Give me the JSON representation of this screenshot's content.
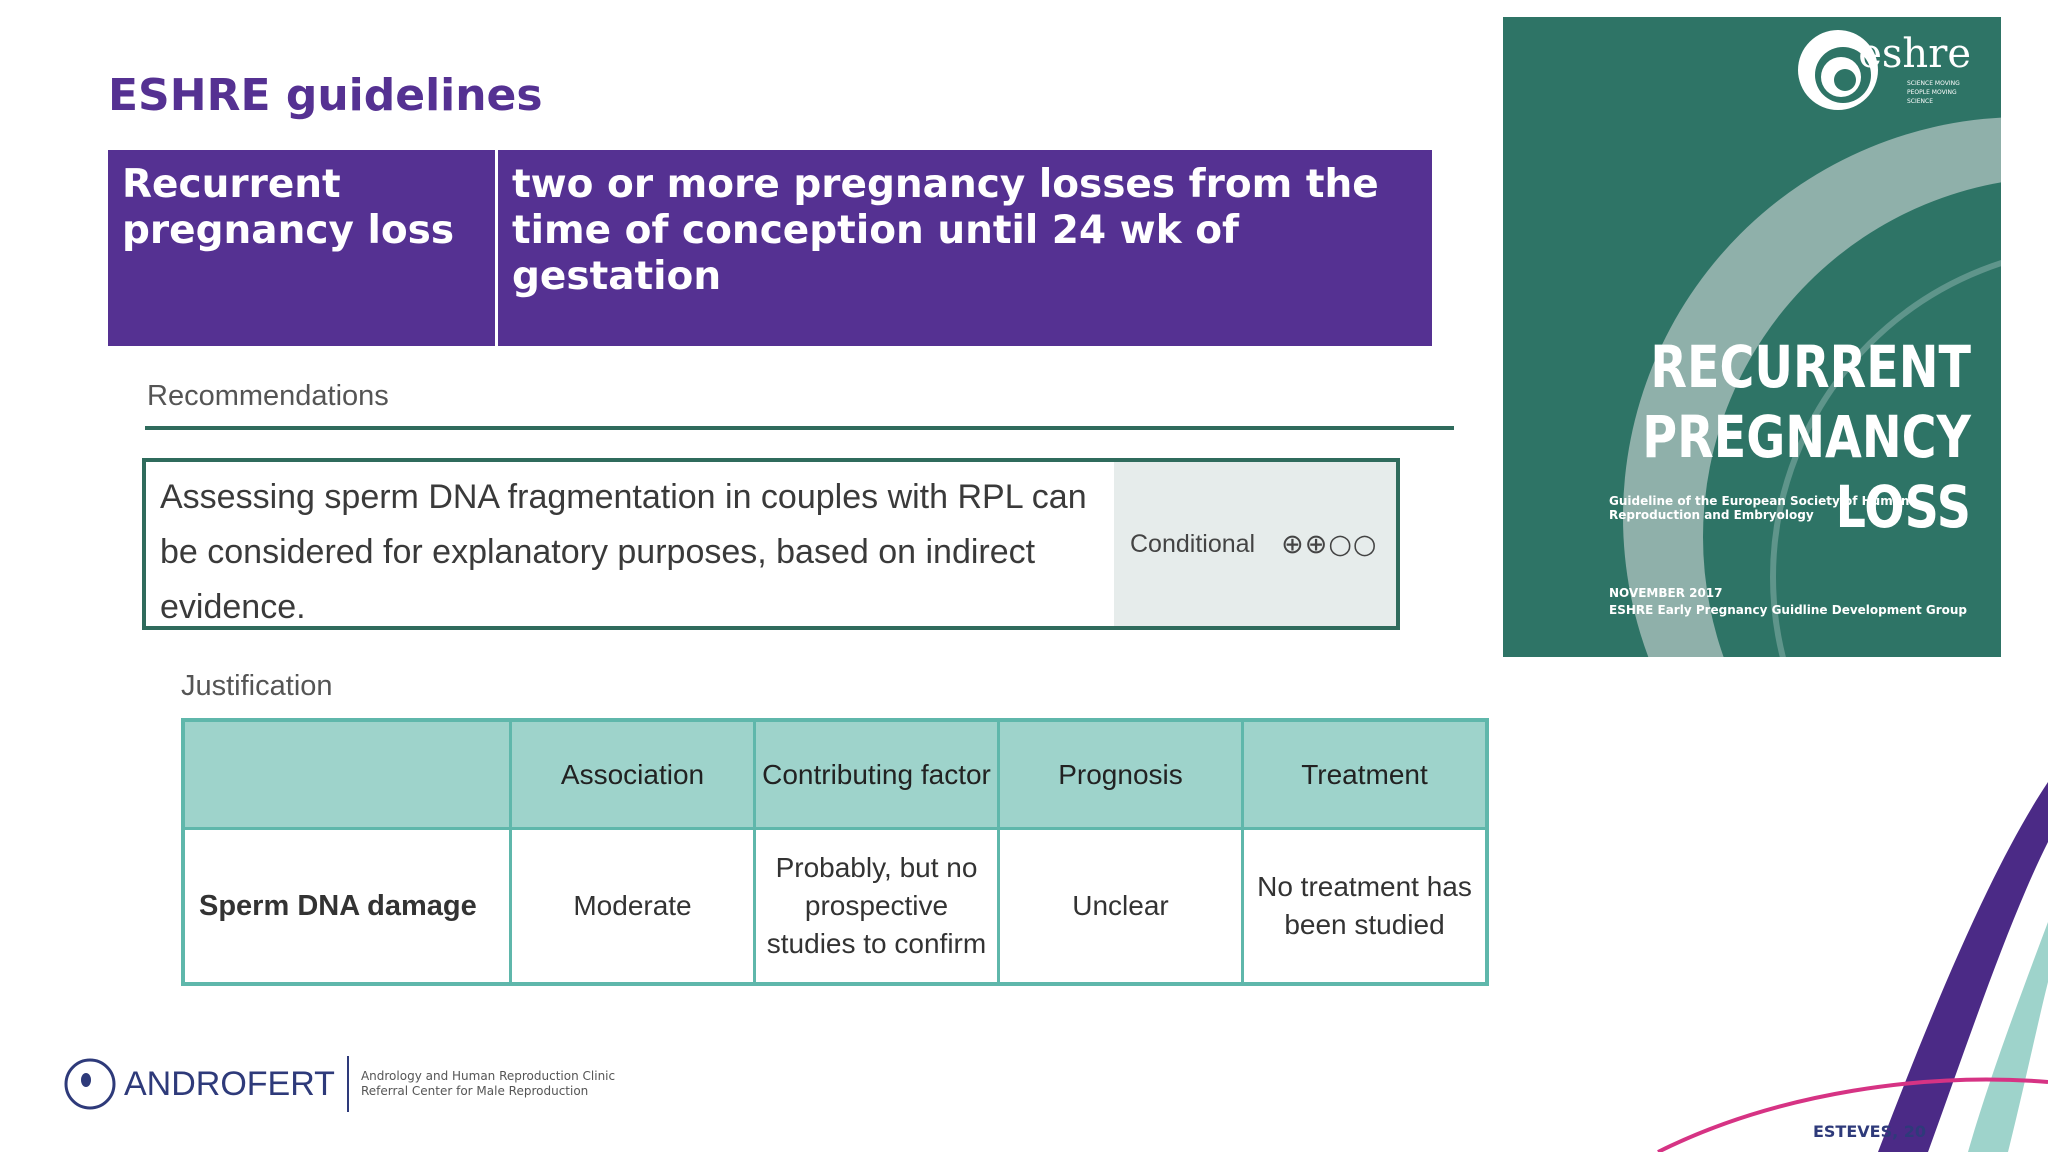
{
  "title": "ESHRE guidelines",
  "definition": {
    "term": "Recurrent pregnancy loss",
    "text": "two or more pregnancy losses from the time of conception until 24 wk of gestation"
  },
  "recommendations": {
    "heading": "Recommendations",
    "text": "Assessing sperm DNA fragmentation in couples with RPL can be considered for explanatory purposes, based on indirect evidence.",
    "strength": "Conditional",
    "grade": "⊕⊕○○"
  },
  "justification": {
    "heading": "Justification",
    "columns": [
      "",
      "Association",
      "Contributing factor",
      "Prognosis",
      "Treatment"
    ],
    "row": [
      "Sperm DNA damage",
      "Moderate",
      "Probably, but no prospective studies to confirm",
      "Unclear",
      "No treatment has been studied"
    ]
  },
  "cover": {
    "brand": "eshre",
    "tagline": "SCIENCE MOVING PEOPLE MOVING SCIENCE",
    "title_line1": "RECURRENT",
    "title_line2": "PREGNANCY LOSS",
    "subtitle": "Guideline of the European Society of Human Reproduction and Embryology",
    "date": "NOVEMBER 2017",
    "group": "ESHRE Early Pregnancy Guidline Development Group"
  },
  "footer": {
    "logo_name": "ANDROFERT",
    "logo_tag_line1": "Andrology and Human Reproduction Clinic",
    "logo_tag_line2": "Referral Center for Male Reproduction",
    "credit": "ESTEVES, 20"
  },
  "colors": {
    "purple": "#553192",
    "teal": "#2e7466",
    "table_head": "#9ed3cb"
  }
}
